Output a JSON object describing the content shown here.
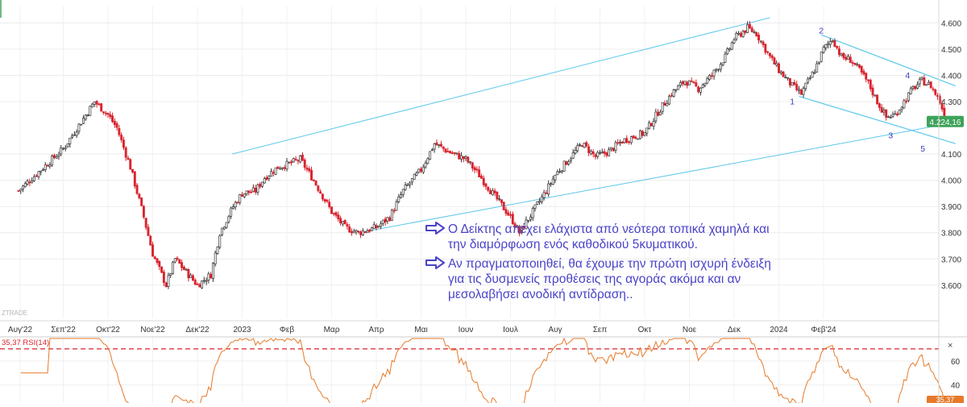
{
  "chart_data": [
    {
      "type": "candlestick",
      "title": "",
      "x_ticks": [
        "Αυγ'22",
        "Σεπ'22",
        "Οκτ'22",
        "Νοε'22",
        "Δεκ'22",
        "2023",
        "Φεβ",
        "Μαρ",
        "Απρ",
        "Μαι",
        "Ιουν",
        "Ιουλ",
        "Αυγ",
        "Σεπ",
        "Οκτ",
        "Νοε",
        "Δεκ",
        "2024",
        "Φεβ'24"
      ],
      "y_ticks": [
        "4.600",
        "4.500",
        "4.400",
        "4.300",
        "4.100",
        "4.000",
        "3.900",
        "3.800",
        "3.700",
        "3.600"
      ],
      "ylim": [
        3500,
        4640
      ],
      "last_price": 4224.16,
      "last_price_label": "4.224,16",
      "close_path": [
        [
          0,
          3960
        ],
        [
          1,
          4120
        ],
        [
          1.7,
          4300
        ],
        [
          2,
          4250
        ],
        [
          2.2,
          4200
        ],
        [
          2.5,
          4050
        ],
        [
          2.8,
          3860
        ],
        [
          3,
          3720
        ],
        [
          3.3,
          3600
        ],
        [
          3.5,
          3700
        ],
        [
          3.7,
          3660
        ],
        [
          4,
          3600
        ],
        [
          4.3,
          3640
        ],
        [
          4.5,
          3800
        ],
        [
          4.8,
          3900
        ],
        [
          5,
          3950
        ],
        [
          5.3,
          3960
        ],
        [
          5.5,
          4010
        ],
        [
          5.8,
          4050
        ],
        [
          6,
          4060
        ],
        [
          6.3,
          4080
        ],
        [
          6.6,
          4000
        ],
        [
          7,
          3880
        ],
        [
          7.3,
          3820
        ],
        [
          7.6,
          3800
        ],
        [
          8,
          3820
        ],
        [
          8.3,
          3860
        ],
        [
          8.6,
          3960
        ],
        [
          9,
          4040
        ],
        [
          9.3,
          4140
        ],
        [
          9.6,
          4110
        ],
        [
          10,
          4080
        ],
        [
          10.3,
          4020
        ],
        [
          10.6,
          3950
        ],
        [
          11,
          3860
        ],
        [
          11.2,
          3800
        ],
        [
          11.5,
          3880
        ],
        [
          11.8,
          3960
        ],
        [
          12,
          4020
        ],
        [
          12.3,
          4080
        ],
        [
          12.6,
          4140
        ],
        [
          12.9,
          4090
        ],
        [
          13.2,
          4110
        ],
        [
          13.5,
          4150
        ],
        [
          13.8,
          4170
        ],
        [
          14,
          4180
        ],
        [
          14.3,
          4260
        ],
        [
          14.6,
          4330
        ],
        [
          14.9,
          4380
        ],
        [
          15.2,
          4350
        ],
        [
          15.5,
          4400
        ],
        [
          15.8,
          4470
        ],
        [
          16,
          4540
        ],
        [
          16.3,
          4580
        ],
        [
          16.5,
          4560
        ],
        [
          16.8,
          4470
        ],
        [
          17,
          4420
        ],
        [
          17.3,
          4360
        ],
        [
          17.5,
          4330
        ],
        [
          17.8,
          4420
        ],
        [
          18,
          4500
        ],
        [
          18.2,
          4540
        ],
        [
          18.4,
          4470
        ],
        [
          18.6,
          4460
        ],
        [
          18.8,
          4420
        ],
        [
          19,
          4370
        ],
        [
          19.2,
          4300
        ],
        [
          19.4,
          4240
        ],
        [
          19.6,
          4250
        ],
        [
          19.8,
          4300
        ],
        [
          20,
          4350
        ],
        [
          20.2,
          4380
        ],
        [
          20.4,
          4360
        ],
        [
          20.6,
          4300
        ],
        [
          20.75,
          4224
        ]
      ],
      "wave_labels": [
        "1",
        "2",
        "3",
        "4",
        "5"
      ],
      "annotations": [
        "Ο Δείκτης απέχει ελάχιστα από νεότερα τοπικά χαμηλά και την διαμόρφωση ενός καθοδικού 5κυματικού.",
        "Αν πραγματοποιηθεί, θα έχουμε την πρώτη ισχυρή ένδειξη για τις δυσμενείς προθέσεις της αγοράς ακόμα και αν μεσολαβήσει ανοδική αντίδραση.."
      ],
      "watermark": "ZTRADE",
      "colors": {
        "up": "#333333",
        "down": "#d9232d",
        "channel": "#5bc8ea",
        "wave_label": "#3b3bbf"
      }
    },
    {
      "type": "line",
      "indicator_label": "35,37 RSI(14)",
      "y_ticks": [
        "60",
        "40"
      ],
      "ylim": [
        25,
        80
      ],
      "overbought_level": 70,
      "last_value_label": "35,37",
      "colors": {
        "line": "#e67a2a",
        "level": "#d9232d",
        "overbought_fill": "#6bcf6b"
      }
    }
  ],
  "notes": {
    "line1a": "Ο Δείκτης απέχει ελάχιστα από νεότερα τοπικά χαμηλά και",
    "line1b": "την διαμόρφωση ενός καθοδικού 5κυματικού.",
    "line2a": "Αν πραγματοποιηθεί, θα έχουμε την πρώτη ισχυρή ένδειξη",
    "line2b": "για τις δυσμενείς προθέσεις της αγοράς ακόμα και αν",
    "line2c": "μεσολαβήσει ανοδική αντίδραση.."
  }
}
